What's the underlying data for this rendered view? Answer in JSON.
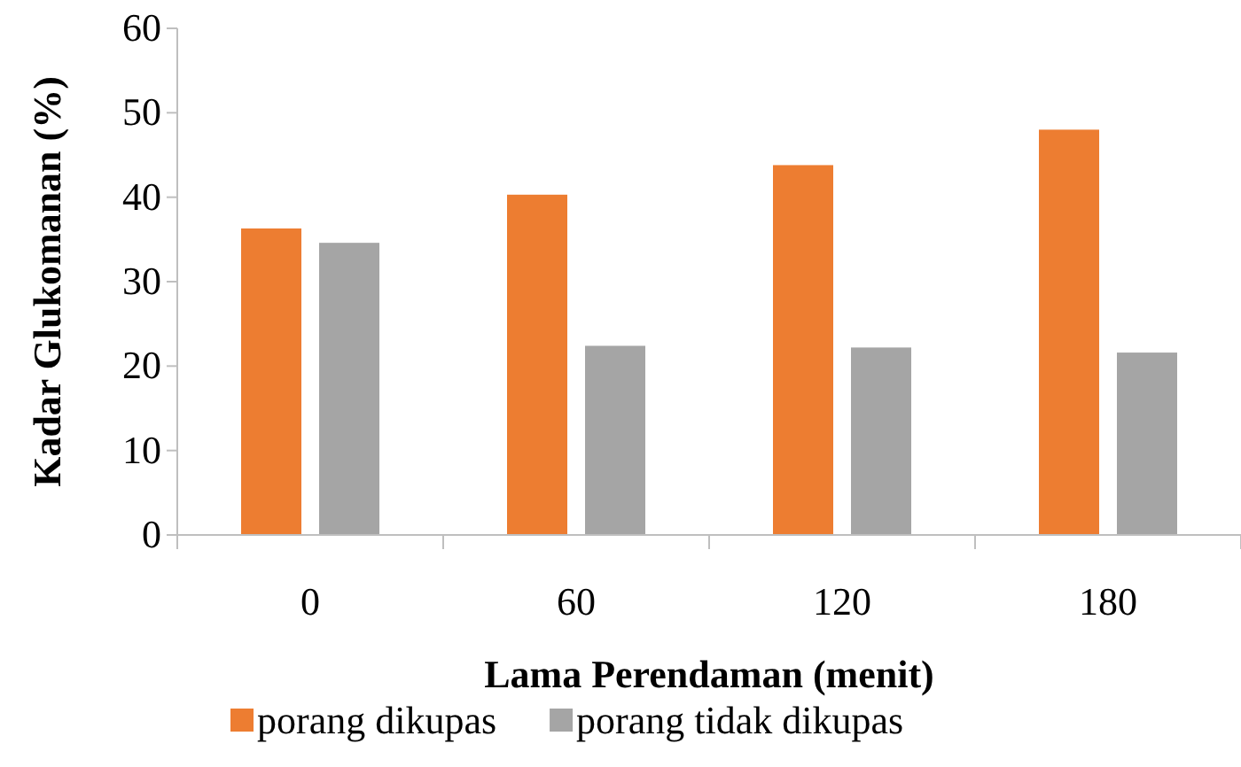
{
  "chart_data": {
    "type": "bar",
    "xlabel": "Lama Perendaman (menit)",
    "ylabel": "Kadar Glukomanan (%)",
    "categories": [
      "0",
      "60",
      "120",
      "180"
    ],
    "series": [
      {
        "name": "porang dikupas",
        "color": "#ed7d31",
        "values": [
          36.3,
          40.3,
          43.8,
          48.0
        ]
      },
      {
        "name": "porang tidak dikupas",
        "color": "#a5a5a5",
        "values": [
          34.6,
          22.4,
          22.2,
          21.6
        ]
      }
    ],
    "ylim": [
      0,
      60
    ],
    "yticks": [
      0,
      10,
      20,
      30,
      40,
      50,
      60
    ],
    "grid": false,
    "legend": "bottom"
  }
}
